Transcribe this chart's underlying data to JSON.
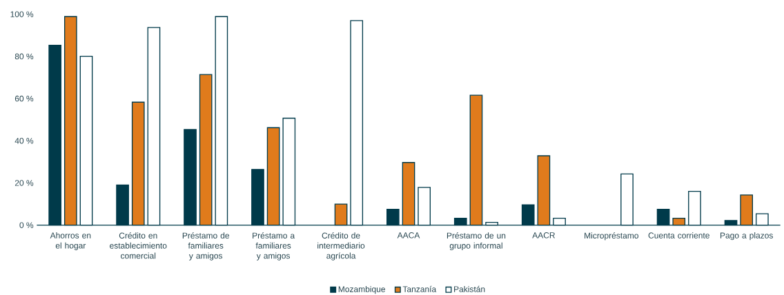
{
  "chart_data": {
    "type": "bar",
    "categories": [
      "Ahorros en el hogar",
      "Crédito en establecimiento comercial",
      "Préstamo de familiares y amigos",
      "Préstamo a familiares y amigos",
      "Crédito de intermediario agrícola",
      "AACA",
      "Préstamo de un grupo informal",
      "AACR",
      "Micropréstamo",
      "Cuenta corriente",
      "Pago a plazos"
    ],
    "series": [
      {
        "name": "Mozambique",
        "color": "#003a4a",
        "values": [
          85.3,
          19.0,
          45.3,
          26.4,
          null,
          7.5,
          3.3,
          9.6,
          null,
          7.5,
          2.2
        ]
      },
      {
        "name": "Tanzanía",
        "color": "#e07b1c",
        "values": [
          98.9,
          58.3,
          71.4,
          46.2,
          10.0,
          29.7,
          61.6,
          32.9,
          null,
          3.3,
          14.3
        ]
      },
      {
        "name": "Pakistán",
        "color": "#ffffff",
        "values": [
          80.1,
          93.7,
          98.9,
          50.7,
          97.0,
          17.9,
          1.3,
          3.3,
          24.3,
          16.0,
          5.4
        ]
      }
    ],
    "ylim": [
      0,
      100
    ],
    "yticks": [
      {
        "value": 0,
        "label": "0 %"
      },
      {
        "value": 20,
        "label": "20 %"
      },
      {
        "value": 40,
        "label": "40 %"
      },
      {
        "value": 60,
        "label": "60 %"
      },
      {
        "value": 80,
        "label": "80 %"
      },
      {
        "value": 100,
        "label": "100 %"
      }
    ],
    "legend": "bottom"
  }
}
